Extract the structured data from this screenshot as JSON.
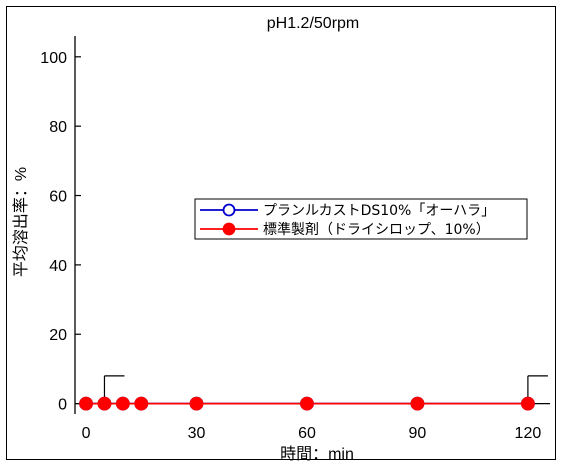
{
  "chart_data": {
    "type": "line",
    "title": "pH1.2/50rpm",
    "xlabel": "時間：min",
    "ylabel": "平均溶出率：%",
    "xlim": [
      -3,
      126
    ],
    "ylim": [
      -3,
      106
    ],
    "xticks": [
      0,
      30,
      60,
      90,
      120
    ],
    "yticks": [
      0,
      20,
      40,
      60,
      80,
      100
    ],
    "x": [
      0,
      5,
      10,
      15,
      30,
      60,
      90,
      120
    ],
    "grid": false,
    "legend_position": "center-right",
    "series": [
      {
        "name": "プランルカストDS10%「オーハラ」",
        "color": "#0000cc",
        "marker": "open-circle",
        "values": [
          0,
          0,
          0,
          0,
          0,
          0,
          0,
          0
        ]
      },
      {
        "name": "標準製剤（ドライシロップ、10%）",
        "color": "#ff0000",
        "marker": "filled-circle",
        "values": [
          0,
          0,
          0,
          0,
          0,
          0,
          0,
          0
        ]
      }
    ],
    "error_bars": [
      {
        "x": 5,
        "upper": 8
      },
      {
        "x": 120,
        "upper": 8
      }
    ]
  }
}
